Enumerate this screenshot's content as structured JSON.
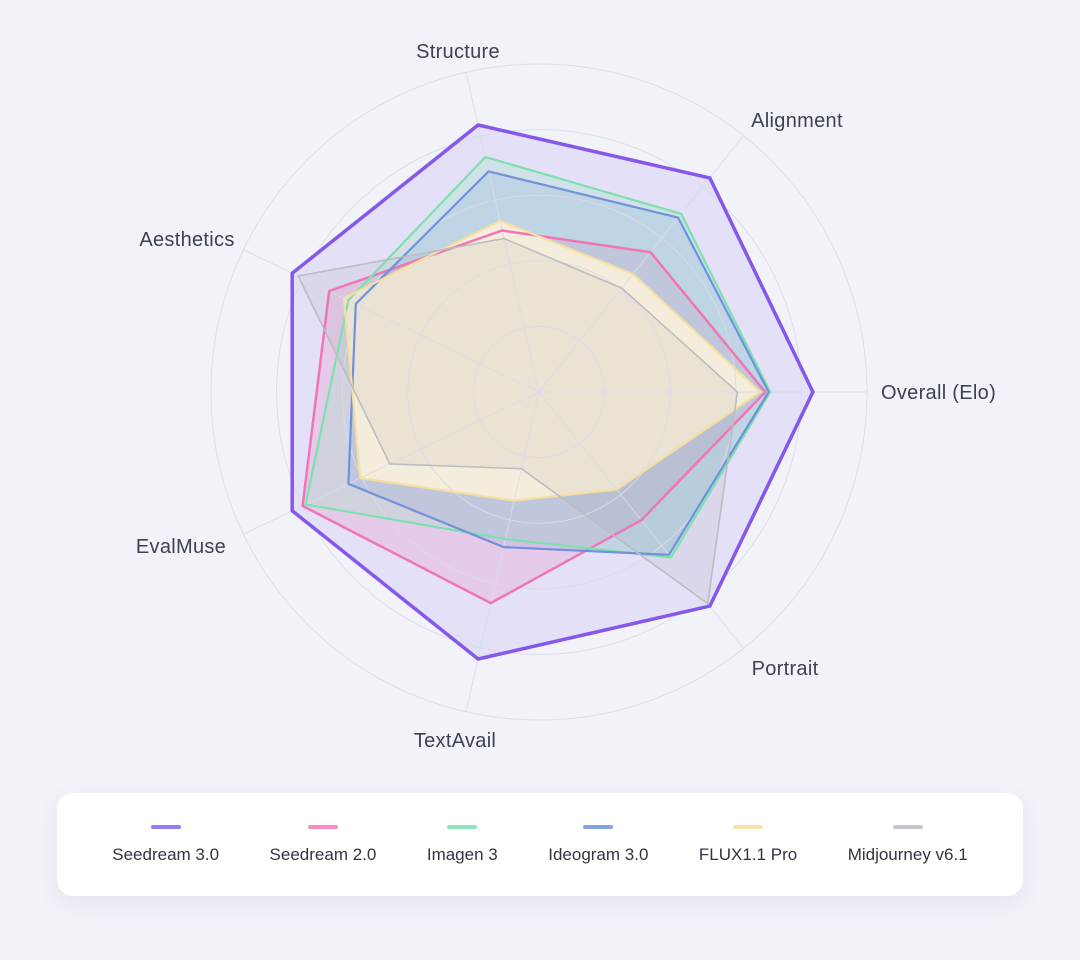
{
  "chart_data": {
    "type": "radar",
    "title": "",
    "grid": "circular",
    "axes": [
      "Overall (Elo)",
      "Alignment",
      "Structure",
      "Aesthetics",
      "EvalMuse",
      "TextAvail",
      "Portrait"
    ],
    "scale": {
      "min": 0,
      "max": 100,
      "rings": 5,
      "tick_labels_visible": false
    },
    "legend_position": "bottom",
    "series": [
      {
        "name": "Seedream 3.0",
        "color": "#8657EB",
        "fill": "rgba(134,87,235,0.12)",
        "values": [
          83.5,
          83.5,
          83.5,
          83.5,
          83.5,
          83.5,
          83.5
        ]
      },
      {
        "name": "Seedream 2.0",
        "color": "#F175B6",
        "fill": "rgba(241,117,182,0.20)",
        "values": [
          69,
          54.5,
          50.5,
          71,
          80,
          66,
          50
        ]
      },
      {
        "name": "Imagen 3",
        "color": "#7EE0B0",
        "fill": "rgba(150,235,190,0.28)",
        "values": [
          70.5,
          69.5,
          73.5,
          64.5,
          79,
          46,
          64.5
        ]
      },
      {
        "name": "Ideogram 3.0",
        "color": "#7191DB",
        "fill": "rgba(113,145,219,0.16)",
        "values": [
          70,
          68,
          69,
          62,
          64.5,
          48.5,
          63.5
        ]
      },
      {
        "name": "FLUX1.1 Pro",
        "color": "#F5DF9F",
        "fill": "rgba(250,240,218,0.92)",
        "values": [
          67.5,
          46,
          53.5,
          66,
          60.5,
          34,
          38
        ]
      },
      {
        "name": "Midjourney v6.1",
        "color": "#BCBCC2",
        "fill": "rgba(140,140,150,0.10)",
        "values": [
          60.5,
          40.5,
          48,
          81.5,
          50.5,
          24,
          82.5
        ]
      }
    ]
  },
  "legend": {
    "items": [
      {
        "label": "Seedream 3.0",
        "color": "#9B7BF0"
      },
      {
        "label": "Seedream 2.0",
        "color": "#F58DC3"
      },
      {
        "label": "Imagen 3",
        "color": "#8FE5BC"
      },
      {
        "label": "Ideogram 3.0",
        "color": "#84A2E2"
      },
      {
        "label": "FLUX1.1 Pro",
        "color": "#F6E3AB"
      },
      {
        "label": "Midjourney v6.1",
        "color": "#C6C6CC"
      }
    ]
  }
}
